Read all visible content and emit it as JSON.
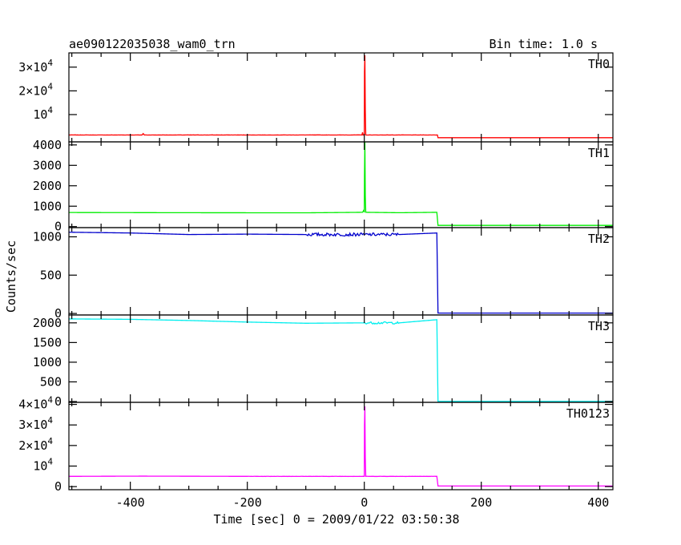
{
  "title": "ae090122035038_wam0_trn",
  "bin_time": "Bin time: 1.0 s",
  "ylabel": "Counts/sec",
  "xlabel": "Time [sec] 0 = 2009/01/22 03:50:38",
  "chart_data": {
    "type": "line",
    "xlim": [
      -505,
      425
    ],
    "x_ticks": [
      "-400",
      "-200",
      "0",
      "200",
      "400"
    ],
    "panels": [
      {
        "label": "TH0",
        "color": "#ff0000",
        "ylim": [
          -1500,
          36000
        ],
        "y_ticks": [
          {
            "v": 10000,
            "t": "10"
          },
          {
            "v": 20000,
            "t": "2×10"
          },
          {
            "v": 30000,
            "t": "3×10"
          }
        ],
        "y_tick_exponent": "4",
        "points": [
          [
            -505,
            1400
          ],
          [
            -380,
            1400
          ],
          [
            -378,
            2000
          ],
          [
            -376,
            1400
          ],
          [
            -4,
            1400
          ],
          [
            -3,
            2500
          ],
          [
            -2,
            1400
          ],
          [
            0,
            1400
          ],
          [
            0.3,
            28000
          ],
          [
            1,
            35000
          ],
          [
            1.7,
            12000
          ],
          [
            2.5,
            1400
          ],
          [
            125,
            1400
          ],
          [
            126,
            250
          ],
          [
            425,
            250
          ]
        ]
      },
      {
        "label": "TH1",
        "color": "#00ee00",
        "ylim": [
          -50,
          4150
        ],
        "y_ticks": [
          {
            "v": 0,
            "t": "0"
          },
          {
            "v": 1000,
            "t": "1000"
          },
          {
            "v": 2000,
            "t": "2000"
          },
          {
            "v": 3000,
            "t": "3000"
          },
          {
            "v": 4000,
            "t": "4000"
          }
        ],
        "points": [
          [
            -505,
            690
          ],
          [
            -300,
            680
          ],
          [
            -100,
            675
          ],
          [
            -3,
            700
          ],
          [
            -1,
            800
          ],
          [
            0,
            700
          ],
          [
            0.3,
            2500
          ],
          [
            1,
            4200
          ],
          [
            1.7,
            1500
          ],
          [
            2.5,
            700
          ],
          [
            60,
            680
          ],
          [
            124,
            700
          ],
          [
            126,
            60
          ],
          [
            425,
            60
          ]
        ]
      },
      {
        "label": "TH2",
        "color": "#0000cc",
        "ylim": [
          -20,
          1120
        ],
        "y_ticks": [
          {
            "v": 0,
            "t": "0"
          },
          {
            "v": 500,
            "t": "500"
          },
          {
            "v": 1000,
            "t": "1000"
          }
        ],
        "points": [
          [
            -505,
            1060
          ],
          [
            -400,
            1050
          ],
          [
            -300,
            1030
          ],
          [
            -200,
            1035
          ],
          [
            -100,
            1030
          ],
          [
            0,
            1030
          ],
          [
            60,
            1030
          ],
          [
            124,
            1050
          ],
          [
            126,
            5
          ],
          [
            425,
            5
          ]
        ]
      },
      {
        "label": "TH3",
        "color": "#00eeee",
        "ylim": [
          -20,
          2200
        ],
        "y_ticks": [
          {
            "v": 0,
            "t": "0"
          },
          {
            "v": 500,
            "t": "500"
          },
          {
            "v": 1000,
            "t": "1000"
          },
          {
            "v": 1500,
            "t": "1500"
          },
          {
            "v": 2000,
            "t": "2000"
          }
        ],
        "points": [
          [
            -505,
            2100
          ],
          [
            -400,
            2090
          ],
          [
            -300,
            2060
          ],
          [
            -200,
            2020
          ],
          [
            -100,
            1990
          ],
          [
            0,
            2000
          ],
          [
            60,
            2000
          ],
          [
            124,
            2080
          ],
          [
            126,
            5
          ],
          [
            425,
            5
          ]
        ]
      },
      {
        "label": "TH0123",
        "color": "#ff00ff",
        "ylim": [
          -1500,
          41000
        ],
        "y_ticks": [
          {
            "v": 0,
            "t": "0"
          },
          {
            "v": 10000,
            "t": "10"
          },
          {
            "v": 20000,
            "t": "2×10"
          },
          {
            "v": 30000,
            "t": "3×10"
          },
          {
            "v": 40000,
            "t": "4×10"
          }
        ],
        "y_tick_exponent": "4",
        "points": [
          [
            -505,
            5000
          ],
          [
            -380,
            5100
          ],
          [
            -200,
            5000
          ],
          [
            -3,
            5000
          ],
          [
            0,
            5000
          ],
          [
            0.3,
            30000
          ],
          [
            1,
            39000
          ],
          [
            1.7,
            14000
          ],
          [
            2.5,
            5000
          ],
          [
            124,
            5000
          ],
          [
            126,
            300
          ],
          [
            425,
            300
          ]
        ]
      }
    ]
  }
}
